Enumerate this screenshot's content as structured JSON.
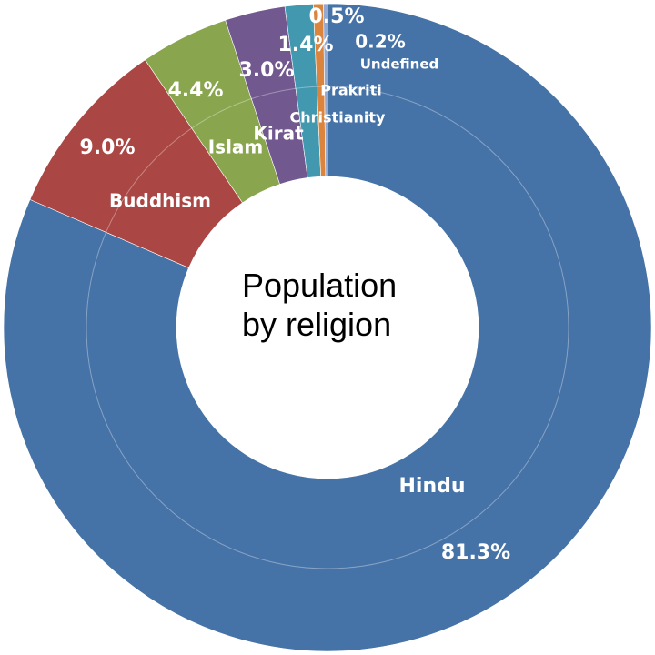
{
  "chart_data": {
    "type": "pie",
    "title": "Population by religion",
    "categories": [
      "Hindu",
      "Buddhism",
      "Islam",
      "Kirat",
      "Christianity",
      "Prakriti",
      "Undefined"
    ],
    "values": [
      81.3,
      9.0,
      4.4,
      3.0,
      1.4,
      0.5,
      0.2
    ],
    "value_labels": [
      "81.3%",
      "9.0%",
      "4.4%",
      "3.0%",
      "1.4%",
      "0.5%",
      "0.2%"
    ],
    "colors": [
      "#4572a7",
      "#aa4643",
      "#89a54e",
      "#71588f",
      "#4198af",
      "#db843d",
      "#93a9cf"
    ]
  }
}
